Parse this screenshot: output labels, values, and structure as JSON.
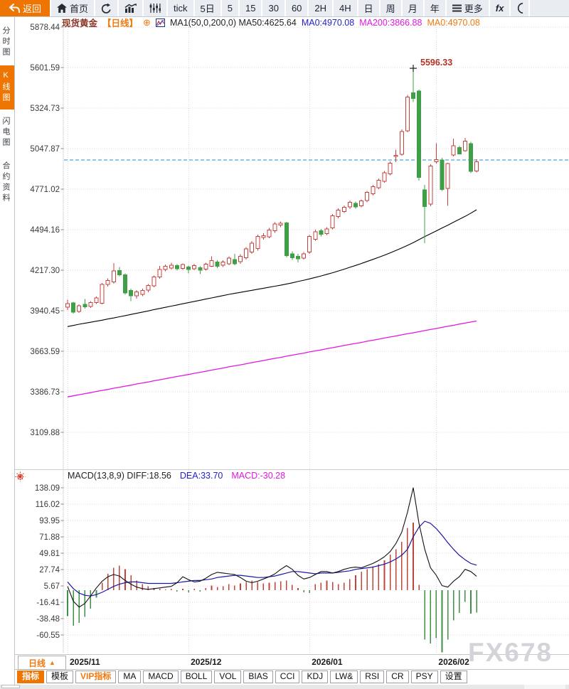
{
  "colors": {
    "accent": "#ee7502",
    "candle_up": "#c8423c",
    "candle_down": "#3f9f46",
    "ma50": "#000000",
    "ma200": "#e018e0",
    "dea": "#1a18a5",
    "diff": "#111111",
    "price_line": "#2191d6",
    "annotation": "#b23226",
    "watermark_color": "#d3d4d9"
  },
  "toolbar": {
    "items": [
      {
        "name": "back-button",
        "label": "返回",
        "icon": "back-arrow-icon",
        "primary": true
      },
      {
        "name": "home-button",
        "label": "首页",
        "icon": "home-icon"
      },
      {
        "name": "refresh-button",
        "icon": "refresh-icon"
      },
      {
        "name": "chart-style-button",
        "icon": "bar-chart-icon"
      },
      {
        "name": "indicator-adjust-button",
        "icon": "candles-icon"
      },
      {
        "name": "tick-button",
        "label": "tick"
      },
      {
        "name": "timeframe-5d-button",
        "label": "5日"
      },
      {
        "name": "timeframe-5m-button",
        "label": "5"
      },
      {
        "name": "timeframe-15m-button",
        "label": "15"
      },
      {
        "name": "timeframe-30m-button",
        "label": "30"
      },
      {
        "name": "timeframe-60m-button",
        "label": "60"
      },
      {
        "name": "timeframe-2h-button",
        "label": "2H"
      },
      {
        "name": "timeframe-4h-button",
        "label": "4H"
      },
      {
        "name": "timeframe-day-button",
        "label": "日"
      },
      {
        "name": "timeframe-week-button",
        "label": "周"
      },
      {
        "name": "timeframe-month-button",
        "label": "月"
      },
      {
        "name": "timeframe-year-button",
        "label": "年"
      },
      {
        "name": "more-button",
        "label": "更多",
        "icon": "menu-icon"
      },
      {
        "name": "fx-button",
        "label": "fx",
        "fx": true
      },
      {
        "name": "clock-button",
        "icon": "clock-partial-icon"
      }
    ]
  },
  "sidebar": {
    "items": [
      {
        "name": "sidebar-item-time-chart",
        "label": "分时图",
        "active": false
      },
      {
        "name": "sidebar-item-kline-chart",
        "label": "K线图",
        "active": true
      },
      {
        "name": "sidebar-item-lightning-chart",
        "label": "闪电图",
        "active": false
      },
      {
        "name": "sidebar-item-contract-info",
        "label": "合约资料",
        "active": false
      }
    ]
  },
  "chart_header": {
    "symbol": "现货黄金",
    "period": "【日线】",
    "ma_settings": "MA1(50,0,200,0) MA50:4625.64",
    "ma0_blue": "MA0:4970.08",
    "ma200": "MA200:3866.88",
    "ma0_orange": "MA0:4970.08"
  },
  "macd_header": {
    "params": "MACD(13,8,9) DIFF:18.56",
    "dea": "DEA:33.70",
    "macd": "MACD:-30.28"
  },
  "bottom": {
    "period_label": "日线",
    "period_arrow": "▲",
    "watermark": "FX678",
    "tabs": [
      {
        "name": "tab-indicator",
        "label": "指标",
        "active": true
      },
      {
        "name": "tab-template",
        "label": "模板"
      },
      {
        "name": "tab-vip-indicator",
        "label": "VIP指标",
        "vip": true
      },
      {
        "name": "tab-ma",
        "label": "MA"
      },
      {
        "name": "tab-macd",
        "label": "MACD"
      },
      {
        "name": "tab-boll",
        "label": "BOLL"
      },
      {
        "name": "tab-vol",
        "label": "VOL"
      },
      {
        "name": "tab-bias",
        "label": "BIAS"
      },
      {
        "name": "tab-cci",
        "label": "CCI"
      },
      {
        "name": "tab-kdj",
        "label": "KDJ"
      },
      {
        "name": "tab-lw",
        "label": "LW&"
      },
      {
        "name": "tab-rsi",
        "label": "RSI"
      },
      {
        "name": "tab-cr",
        "label": "CR"
      },
      {
        "name": "tab-psy",
        "label": "PSY"
      },
      {
        "name": "tab-settings",
        "label": "设置"
      }
    ]
  },
  "chart_data": [
    {
      "type": "candlestick",
      "title": "现货黄金 日线",
      "y_ticks": [
        5878.44,
        5601.59,
        5324.73,
        5047.87,
        4771.02,
        4494.16,
        4217.3,
        3940.45,
        3663.59,
        3386.73,
        3109.88
      ],
      "x_ticks": [
        {
          "label": "2025/11",
          "index": 0
        },
        {
          "label": "2025/12",
          "index": 21
        },
        {
          "label": "2026/01",
          "index": 42
        },
        {
          "label": "2026/02",
          "index": 64
        }
      ],
      "current_price": 4970.08,
      "annotation": {
        "text": "5596.33",
        "value": 5596.33,
        "candle_index": 60
      },
      "candles": [
        [
          3965,
          4015,
          3945,
          3990
        ],
        [
          3995,
          4000,
          3920,
          3930
        ],
        [
          3935,
          3985,
          3925,
          3975
        ],
        [
          3985,
          4020,
          3955,
          3968
        ],
        [
          3970,
          4005,
          3960,
          3996
        ],
        [
          3996,
          4038,
          3986,
          4028
        ],
        [
          3992,
          4130,
          3985,
          4120
        ],
        [
          4120,
          4162,
          4105,
          4146
        ],
        [
          4138,
          4266,
          4126,
          4212
        ],
        [
          4215,
          4240,
          4176,
          4186
        ],
        [
          4186,
          4196,
          4050,
          4062
        ],
        [
          4080,
          4092,
          4006,
          4042
        ],
        [
          4042,
          4082,
          4022,
          4070
        ],
        [
          4052,
          4090,
          4040,
          4080
        ],
        [
          4082,
          4122,
          4066,
          4112
        ],
        [
          4110,
          4182,
          4100,
          4172
        ],
        [
          4170,
          4246,
          4160,
          4222
        ],
        [
          4222,
          4256,
          4210,
          4244
        ],
        [
          4232,
          4268,
          4222,
          4252
        ],
        [
          4248,
          4258,
          4215,
          4228
        ],
        [
          4230,
          4264,
          4220,
          4256
        ],
        [
          4240,
          4250,
          4196,
          4222
        ],
        [
          4228,
          4262,
          4218,
          4250
        ],
        [
          4235,
          4244,
          4190,
          4218
        ],
        [
          4225,
          4268,
          4215,
          4258
        ],
        [
          4245,
          4312,
          4238,
          4282
        ],
        [
          4272,
          4286,
          4232,
          4244
        ],
        [
          4250,
          4286,
          4240,
          4272
        ],
        [
          4262,
          4312,
          4252,
          4300
        ],
        [
          4290,
          4330,
          4252,
          4262
        ],
        [
          4275,
          4326,
          4262,
          4312
        ],
        [
          4302,
          4376,
          4290,
          4362
        ],
        [
          4342,
          4416,
          4330,
          4402
        ],
        [
          4365,
          4460,
          4352,
          4448
        ],
        [
          4440,
          4470,
          4425,
          4452
        ],
        [
          4445,
          4506,
          4435,
          4492
        ],
        [
          4488,
          4546,
          4472,
          4532
        ],
        [
          4525,
          4550,
          4510,
          4538
        ],
        [
          4540,
          4548,
          4305,
          4318
        ],
        [
          4330,
          4346,
          4288,
          4302
        ],
        [
          4312,
          4330,
          4270,
          4295
        ],
        [
          4300,
          4342,
          4290,
          4330
        ],
        [
          4340,
          4458,
          4330,
          4448
        ],
        [
          4428,
          4495,
          4418,
          4480
        ],
        [
          4488,
          4500,
          4448,
          4462
        ],
        [
          4468,
          4512,
          4458,
          4500
        ],
        [
          4506,
          4602,
          4496,
          4590
        ],
        [
          4585,
          4640,
          4572,
          4628
        ],
        [
          4618,
          4660,
          4608,
          4648
        ],
        [
          4650,
          4694,
          4636,
          4682
        ],
        [
          4674,
          4686,
          4638,
          4650
        ],
        [
          4656,
          4700,
          4646,
          4690
        ],
        [
          4692,
          4760,
          4682,
          4748
        ],
        [
          4740,
          4800,
          4730,
          4788
        ],
        [
          4780,
          4845,
          4770,
          4832
        ],
        [
          4825,
          4895,
          4815,
          4882
        ],
        [
          4875,
          4960,
          4865,
          4948
        ],
        [
          4995,
          5040,
          4955,
          5002
        ],
        [
          5010,
          5180,
          5000,
          5165
        ],
        [
          5170,
          5415,
          5160,
          5400
        ],
        [
          5430,
          5596.33,
          5365,
          5390
        ],
        [
          5441,
          5452,
          4830,
          4852
        ],
        [
          4766,
          4800,
          4402,
          4652
        ],
        [
          4668,
          4940,
          4655,
          4930
        ],
        [
          4958,
          5085,
          4945,
          4972
        ],
        [
          4970,
          4985,
          4760,
          4768
        ],
        [
          4775,
          4950,
          4656,
          4946
        ],
        [
          5005,
          5116,
          4995,
          5068
        ],
        [
          5056,
          5068,
          5008,
          5012
        ],
        [
          5033,
          5120,
          5025,
          5100
        ],
        [
          5082,
          5095,
          4880,
          4892
        ],
        [
          4895,
          4975,
          4885,
          4958
        ]
      ],
      "ma50": [
        3832,
        3840,
        3848,
        3855,
        3862,
        3869,
        3876,
        3884,
        3891,
        3899,
        3907,
        3915,
        3923,
        3931,
        3939,
        3948,
        3956,
        3964,
        3972,
        3980,
        3988,
        3996,
        4004,
        4012,
        4020,
        4028,
        4036,
        4044,
        4052,
        4059,
        4066,
        4073,
        4080,
        4087,
        4094,
        4101,
        4108,
        4115,
        4123,
        4131,
        4140,
        4149,
        4158,
        4168,
        4178,
        4189,
        4200,
        4212,
        4224,
        4237,
        4250,
        4263,
        4277,
        4291,
        4305,
        4320,
        4336,
        4352,
        4369,
        4387,
        4406,
        4426,
        4447,
        4466,
        4486,
        4506,
        4525,
        4545,
        4565,
        4585,
        4607,
        4630
      ],
      "ma200": [
        3352,
        3359,
        3367,
        3374,
        3381,
        3389,
        3396,
        3403,
        3411,
        3418,
        3425,
        3432,
        3440,
        3447,
        3454,
        3462,
        3469,
        3476,
        3484,
        3491,
        3498,
        3505,
        3513,
        3520,
        3527,
        3535,
        3542,
        3549,
        3557,
        3564,
        3571,
        3578,
        3586,
        3593,
        3600,
        3608,
        3615,
        3622,
        3630,
        3637,
        3644,
        3651,
        3659,
        3666,
        3673,
        3681,
        3688,
        3695,
        3703,
        3710,
        3717,
        3724,
        3732,
        3739,
        3746,
        3754,
        3761,
        3768,
        3776,
        3783,
        3790,
        3797,
        3805,
        3812,
        3819,
        3827,
        3834,
        3841,
        3849,
        3856,
        3863,
        3870
      ],
      "colors": {
        "up": "#c8423c",
        "down": "#3f9f46",
        "ma50": "#000000",
        "ma200": "#e018e0",
        "price_line": "#2191d6",
        "grid": "#ead9d9",
        "month_grid": "#d9d2e2"
      }
    },
    {
      "type": "macd",
      "title": "MACD(13,8,9)",
      "y_ticks": [
        138.09,
        116.02,
        93.95,
        71.88,
        49.81,
        27.74,
        5.67,
        -16.41,
        -38.48,
        -60.55
      ],
      "diff": [
        5,
        -15,
        -23,
        -18,
        -8,
        3,
        12,
        18,
        21,
        19,
        13,
        8,
        4,
        2,
        1,
        2,
        3,
        4,
        5,
        10,
        18,
        14,
        11,
        12,
        16,
        21,
        24,
        23,
        22,
        21,
        17,
        12,
        10,
        12,
        15,
        18,
        22,
        28,
        33,
        28,
        20,
        15,
        17,
        21,
        25,
        25,
        23,
        25,
        28,
        30,
        31,
        30,
        33,
        36,
        40,
        45,
        52,
        63,
        78,
        105,
        138.09,
        90,
        55,
        30,
        20,
        6,
        4,
        12,
        18,
        28,
        25,
        18.56
      ],
      "dea": [
        11,
        2,
        -4,
        -7,
        -8,
        -6,
        -3,
        1,
        5,
        8,
        10,
        11,
        11,
        10,
        9,
        9,
        9,
        9,
        9,
        10,
        11,
        12,
        13,
        13,
        14,
        15,
        17,
        18,
        19,
        20,
        20,
        19,
        18,
        17,
        17,
        18,
        19,
        21,
        23,
        25,
        25,
        24,
        23,
        22,
        23,
        23,
        23,
        24,
        25,
        26,
        28,
        29,
        30,
        31,
        33,
        35,
        38,
        42,
        47,
        55,
        72,
        85,
        93,
        90,
        83,
        74,
        64,
        55,
        47,
        41,
        36,
        33.7
      ],
      "hist": [
        -35,
        -48,
        -44,
        -36,
        -25,
        -10,
        10,
        22,
        30,
        33,
        28,
        20,
        13,
        8,
        5,
        3,
        2,
        1,
        2,
        -2,
        2,
        -3,
        2,
        -2,
        3,
        6,
        4,
        5,
        8,
        6,
        9,
        11,
        13,
        11,
        9,
        10,
        11,
        12,
        13,
        7,
        3,
        -3,
        -4,
        8,
        10,
        13,
        11,
        8,
        10,
        15,
        20,
        25,
        28,
        32,
        35,
        40,
        48,
        55,
        65,
        84,
        91,
        7,
        -67,
        -72,
        -65,
        -84,
        -67,
        -41,
        -31,
        -16,
        -32,
        -30.28
      ],
      "colors": {
        "diff": "#111111",
        "dea": "#1a18a5",
        "hist_pos": "#c0443e",
        "hist_neg": "#3f8f46"
      }
    }
  ]
}
